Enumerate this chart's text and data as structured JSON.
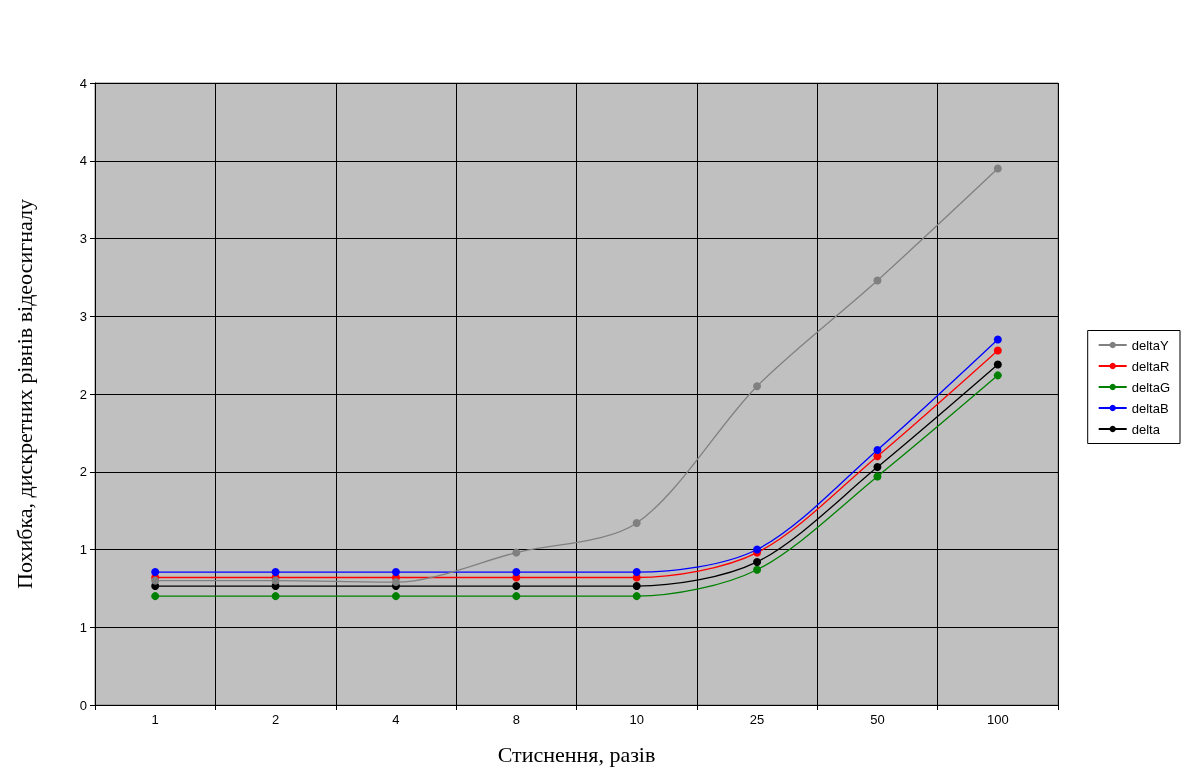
{
  "chart_data": {
    "type": "line",
    "xlabel": "Стиснення, разів",
    "ylabel": "Похибка, дискретних рівнів відеосигналу",
    "categories": [
      "1",
      "2",
      "4",
      "8",
      "10",
      "25",
      "50",
      "100"
    ],
    "series": [
      {
        "name": "deltaY",
        "color": "#808080",
        "values": [
          0.8,
          0.8,
          0.79,
          0.98,
          1.17,
          2.05,
          2.73,
          3.45
        ]
      },
      {
        "name": "deltaR",
        "color": "#ff0000",
        "values": [
          0.82,
          0.82,
          0.82,
          0.82,
          0.82,
          0.98,
          1.6,
          2.28
        ]
      },
      {
        "name": "deltaG",
        "color": "#008000",
        "values": [
          0.7,
          0.7,
          0.7,
          0.7,
          0.7,
          0.87,
          1.47,
          2.12
        ]
      },
      {
        "name": "deltaB",
        "color": "#0000ff",
        "values": [
          0.855,
          0.855,
          0.855,
          0.855,
          0.855,
          1.0,
          1.64,
          2.35
        ]
      },
      {
        "name": "delta",
        "color": "#000000",
        "values": [
          0.765,
          0.765,
          0.765,
          0.765,
          0.765,
          0.92,
          1.53,
          2.19
        ]
      }
    ],
    "ylim": [
      0,
      4
    ],
    "yticks": [
      0,
      {
        "value": 0.5,
        "label": "1"
      },
      1,
      {
        "value": 1.5,
        "label": "2"
      },
      2,
      {
        "value": 2.5,
        "label": "3"
      },
      3,
      {
        "value": 3.5,
        "label": "4"
      },
      4
    ],
    "grid": true,
    "legend": "right",
    "marker": "circle",
    "line_style": "solid"
  }
}
